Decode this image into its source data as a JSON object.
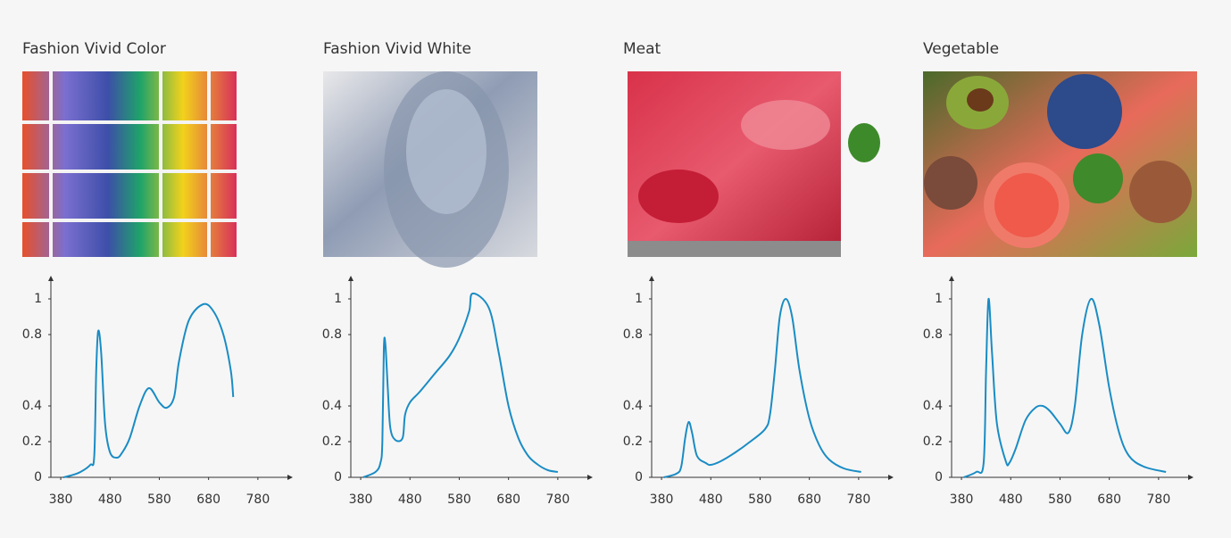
{
  "chart_data": [
    {
      "type": "line",
      "title": "Fashion Vivid Color",
      "color": "#1a8cc4",
      "x": [
        385,
        400,
        420,
        440,
        448,
        452,
        456,
        462,
        470,
        480,
        494,
        505,
        520,
        540,
        559,
        580,
        595,
        610,
        620,
        640,
        669,
        690,
        710,
        725,
        730
      ],
      "values": [
        0,
        0.01,
        0.03,
        0.07,
        0.12,
        0.6,
        0.82,
        0.7,
        0.3,
        0.14,
        0.11,
        0.14,
        0.22,
        0.4,
        0.5,
        0.42,
        0.39,
        0.45,
        0.65,
        0.88,
        0.97,
        0.93,
        0.8,
        0.6,
        0.45
      ],
      "xlim": [
        360,
        840
      ],
      "ylim": [
        0,
        1.1
      ],
      "xticks": [
        380,
        480,
        580,
        680,
        780
      ],
      "yticks": [
        0,
        0.2,
        0.4,
        0.8,
        1
      ]
    },
    {
      "type": "line",
      "title": "Fashion Vivid White",
      "color": "#1a8cc4",
      "x": [
        385,
        410,
        420,
        424,
        427,
        430,
        435,
        440,
        450,
        465,
        470,
        480,
        500,
        530,
        560,
        580,
        600,
        607,
        640,
        660,
        680,
        700,
        720,
        740,
        760,
        780
      ],
      "values": [
        0,
        0.03,
        0.08,
        0.2,
        0.72,
        0.75,
        0.5,
        0.28,
        0.21,
        0.22,
        0.35,
        0.42,
        0.48,
        0.58,
        0.68,
        0.78,
        0.93,
        1.03,
        0.95,
        0.7,
        0.4,
        0.22,
        0.12,
        0.07,
        0.04,
        0.03
      ],
      "xlim": [
        360,
        840
      ],
      "ylim": [
        0,
        1.1
      ],
      "xticks": [
        380,
        480,
        580,
        680,
        780
      ],
      "yticks": [
        0,
        0.2,
        0.4,
        0.8,
        1
      ]
    },
    {
      "type": "line",
      "title": "Meat",
      "color": "#1a8cc4",
      "x": [
        385,
        410,
        420,
        428,
        435,
        442,
        452,
        470,
        480,
        500,
        530,
        560,
        590,
        600,
        610,
        620,
        632,
        645,
        660,
        680,
        700,
        720,
        750,
        785
      ],
      "values": [
        0,
        0.02,
        0.06,
        0.22,
        0.31,
        0.25,
        0.12,
        0.08,
        0.07,
        0.09,
        0.14,
        0.2,
        0.27,
        0.35,
        0.6,
        0.9,
        1,
        0.9,
        0.6,
        0.33,
        0.18,
        0.1,
        0.05,
        0.03
      ],
      "xlim": [
        360,
        840
      ],
      "ylim": [
        0,
        1.1
      ],
      "xticks": [
        380,
        480,
        580,
        680,
        780
      ],
      "yticks": [
        0,
        0.2,
        0.4,
        0.8,
        1
      ]
    },
    {
      "type": "line",
      "title": "Vegetable",
      "color": "#1a8cc4",
      "x": [
        385,
        410,
        425,
        430,
        435,
        442,
        452,
        470,
        477,
        490,
        510,
        530,
        545,
        560,
        580,
        597,
        610,
        625,
        643,
        660,
        680,
        700,
        720,
        750,
        795
      ],
      "values": [
        0,
        0.03,
        0.08,
        0.6,
        1,
        0.7,
        0.3,
        0.09,
        0.08,
        0.16,
        0.32,
        0.39,
        0.4,
        0.37,
        0.3,
        0.25,
        0.4,
        0.8,
        1,
        0.85,
        0.5,
        0.25,
        0.12,
        0.06,
        0.03
      ],
      "xlim": [
        360,
        840
      ],
      "ylim": [
        0,
        1.1
      ],
      "xticks": [
        380,
        480,
        580,
        680,
        780
      ],
      "yticks": [
        0,
        0.2,
        0.4,
        0.8,
        1
      ]
    }
  ]
}
